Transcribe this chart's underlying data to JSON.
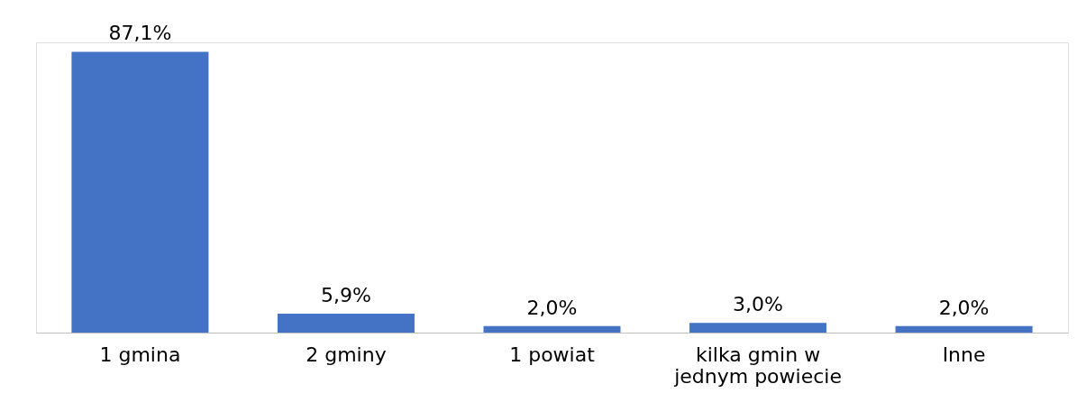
{
  "chart_data": {
    "type": "bar",
    "categories": [
      "1 gmina",
      "2 gminy",
      "1 powiat",
      "kilka gmin w\njednym powiecie",
      "Inne"
    ],
    "values": [
      87.1,
      5.9,
      2.0,
      3.0,
      2.0
    ],
    "value_labels": [
      "87,1%",
      "5,9%",
      "2,0%",
      "3,0%",
      "2,0%"
    ],
    "color": "#4472c4",
    "grid": false
  }
}
